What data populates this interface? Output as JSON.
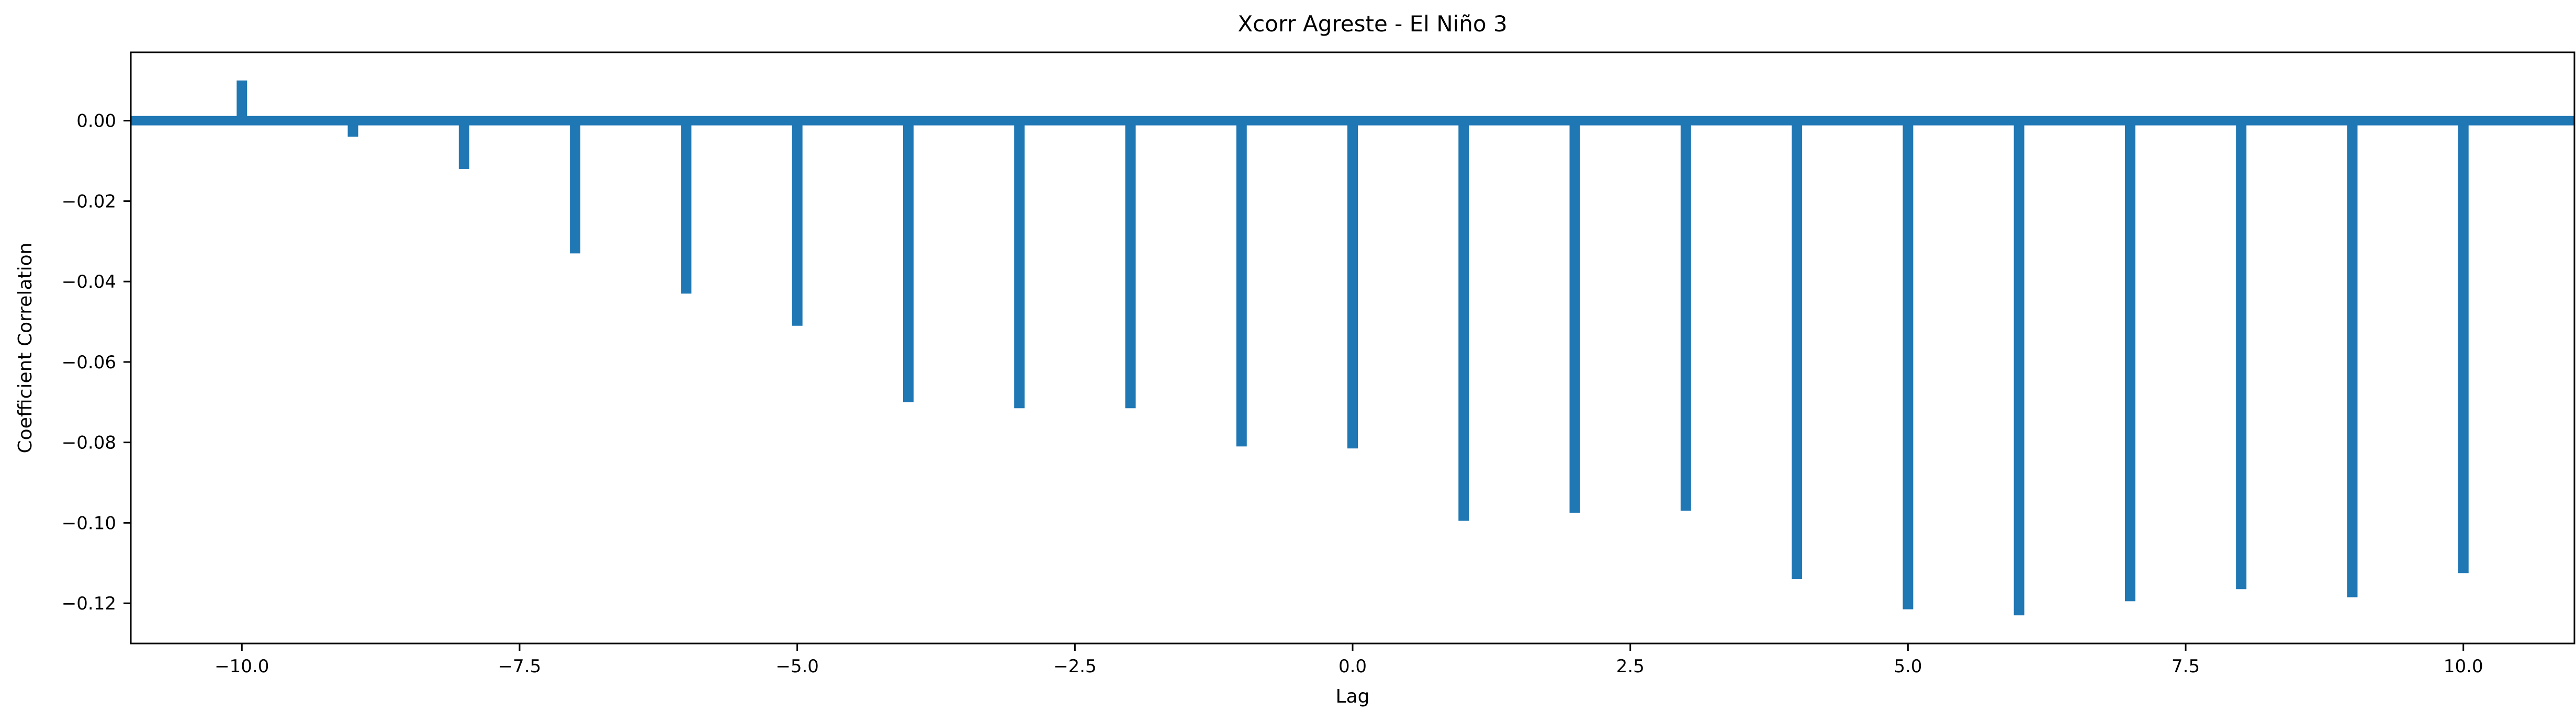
{
  "chart_data": {
    "type": "bar",
    "title": "Xcorr Agreste - El Niño 3",
    "xlabel": "Lag",
    "ylabel": "Coefficient Correlation",
    "xlim": [
      -11,
      11
    ],
    "ylim": [
      -0.13,
      0.017
    ],
    "grid": false,
    "color": "#1f77b4",
    "x": [
      -10,
      -9,
      -8,
      -7,
      -6,
      -5,
      -4,
      -3,
      -2,
      -1,
      0,
      1,
      2,
      3,
      4,
      5,
      6,
      7,
      8,
      9,
      10
    ],
    "values": [
      0.01,
      -0.004,
      -0.012,
      -0.033,
      -0.043,
      -0.051,
      -0.07,
      -0.0715,
      -0.0715,
      -0.081,
      -0.0815,
      -0.0995,
      -0.0975,
      -0.097,
      -0.114,
      -0.1215,
      -0.123,
      -0.1195,
      -0.1165,
      -0.1185,
      -0.1125
    ],
    "baseline": 0.0,
    "xticks": [
      -10.0,
      -7.5,
      -5.0,
      -2.5,
      0.0,
      2.5,
      5.0,
      7.5,
      10.0
    ],
    "xtick_labels": [
      "−10.0",
      "−7.5",
      "−5.0",
      "−2.5",
      "0.0",
      "2.5",
      "5.0",
      "7.5",
      "10.0"
    ],
    "yticks": [
      0.0,
      -0.02,
      -0.04,
      -0.06,
      -0.08,
      -0.1,
      -0.12
    ],
    "ytick_labels": [
      "0.00",
      "−0.02",
      "−0.04",
      "−0.06",
      "−0.08",
      "−0.10",
      "−0.12"
    ]
  }
}
